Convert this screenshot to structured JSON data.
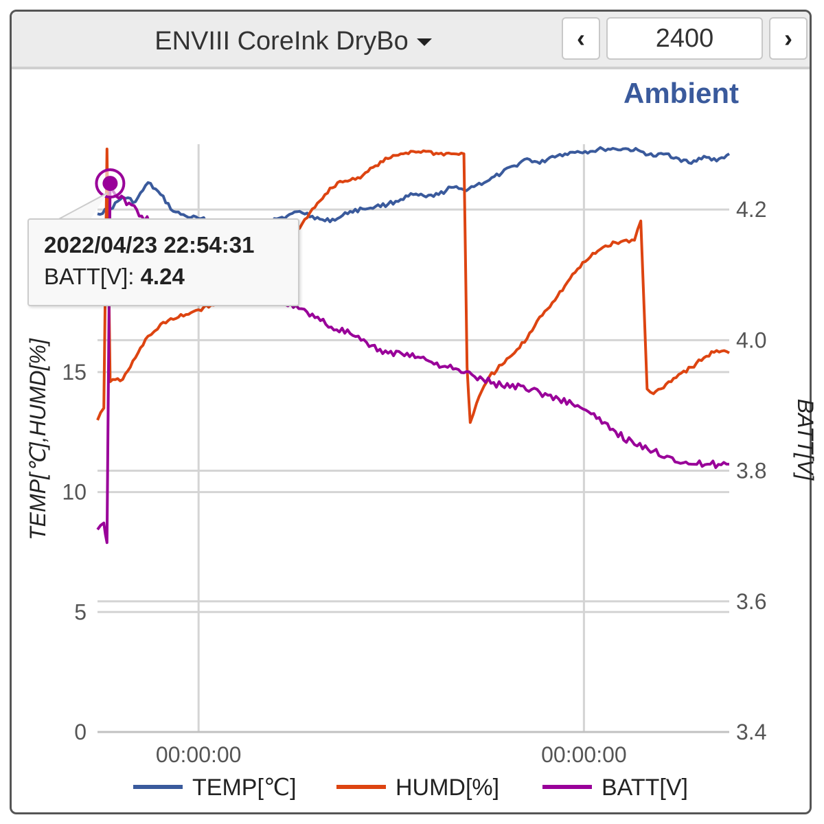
{
  "toolbar": {
    "device_name": "ENVIII CoreInk DryBo",
    "count": "2400",
    "prev_label": "‹",
    "next_label": "›"
  },
  "colors": {
    "temp": "#3a5a9c",
    "humd": "#dd4411",
    "batt": "#990099",
    "accent": "#3a5a9c"
  },
  "tooltip": {
    "timestamp": "2022/04/23 22:54:31",
    "series_label": "BATT[V]: ",
    "value": "4.24"
  },
  "chart_data": {
    "type": "line",
    "title": "Ambient",
    "ylabel_left": "TEMP[℃],HUMD[%]",
    "ylabel_right": "BATT[V]",
    "x_tick_labels": [
      "00:00:00",
      "00:00:00"
    ],
    "x_ticks": [
      0.16,
      0.77
    ],
    "xlim": [
      0,
      1
    ],
    "ylim_left": [
      0,
      24.5
    ],
    "ylim_right": [
      3.4,
      4.3
    ],
    "y_ticks_left": [
      0,
      5,
      10,
      15
    ],
    "y_ticks_right": [
      3.4,
      3.6,
      3.8,
      4.0,
      4.2
    ],
    "grid": true,
    "legend_position": "bottom",
    "series": [
      {
        "name": "TEMP[℃]",
        "axis": "left",
        "color": "#3a5a9c",
        "x": [
          0.0,
          0.02,
          0.04,
          0.06,
          0.08,
          0.1,
          0.12,
          0.14,
          0.16,
          0.18,
          0.2,
          0.22,
          0.24,
          0.26,
          0.28,
          0.3,
          0.32,
          0.34,
          0.36,
          0.38,
          0.4,
          0.42,
          0.44,
          0.46,
          0.48,
          0.5,
          0.52,
          0.54,
          0.56,
          0.58,
          0.6,
          0.62,
          0.64,
          0.66,
          0.68,
          0.7,
          0.72,
          0.74,
          0.76,
          0.78,
          0.8,
          0.82,
          0.84,
          0.86,
          0.88,
          0.9,
          0.92,
          0.94,
          0.96,
          0.98,
          1.0
        ],
        "values": [
          21.6,
          21.8,
          22.3,
          22.1,
          22.9,
          22.4,
          21.7,
          21.5,
          21.4,
          21.3,
          21.2,
          21.0,
          20.8,
          21.1,
          21.4,
          21.5,
          21.7,
          21.5,
          21.3,
          21.4,
          21.7,
          21.8,
          21.9,
          22.0,
          22.2,
          22.4,
          22.3,
          22.4,
          22.7,
          22.6,
          22.8,
          23.0,
          23.3,
          23.6,
          23.9,
          23.7,
          24.0,
          24.1,
          24.2,
          24.2,
          24.3,
          24.3,
          24.3,
          24.2,
          24.0,
          24.1,
          23.9,
          23.7,
          24.0,
          23.8,
          24.1
        ]
      },
      {
        "name": "HUMD[%]",
        "axis": "left",
        "color": "#dd4411",
        "x": [
          0.0,
          0.01,
          0.015,
          0.02,
          0.04,
          0.06,
          0.08,
          0.09,
          0.1,
          0.12,
          0.14,
          0.16,
          0.18,
          0.2,
          0.22,
          0.24,
          0.26,
          0.28,
          0.3,
          0.32,
          0.34,
          0.36,
          0.38,
          0.4,
          0.42,
          0.44,
          0.46,
          0.48,
          0.5,
          0.52,
          0.54,
          0.56,
          0.58,
          0.585,
          0.59,
          0.6,
          0.62,
          0.64,
          0.66,
          0.68,
          0.7,
          0.72,
          0.74,
          0.76,
          0.78,
          0.8,
          0.82,
          0.85,
          0.86,
          0.87,
          0.88,
          0.9,
          0.92,
          0.94,
          0.96,
          0.98,
          1.0
        ],
        "values": [
          13.0,
          13.5,
          24.3,
          14.6,
          14.7,
          15.6,
          16.5,
          16.7,
          17.0,
          17.2,
          17.4,
          17.6,
          17.8,
          18.0,
          18.2,
          18.5,
          18.9,
          19.5,
          20.3,
          21.0,
          21.8,
          22.4,
          22.9,
          23.0,
          23.2,
          23.6,
          23.9,
          24.1,
          24.2,
          24.2,
          24.1,
          24.1,
          24.1,
          15.2,
          12.9,
          13.7,
          14.8,
          15.3,
          15.8,
          16.4,
          17.3,
          17.9,
          18.6,
          19.3,
          19.8,
          20.2,
          20.4,
          20.5,
          21.3,
          14.3,
          14.1,
          14.5,
          14.9,
          15.2,
          15.6,
          15.9,
          15.8
        ]
      },
      {
        "name": "BATT[V]",
        "axis": "right",
        "color": "#990099",
        "x": [
          0.0,
          0.01,
          0.015,
          0.02,
          0.03,
          0.05,
          0.07,
          0.1,
          0.13,
          0.16,
          0.19,
          0.22,
          0.25,
          0.28,
          0.31,
          0.34,
          0.37,
          0.4,
          0.43,
          0.46,
          0.49,
          0.52,
          0.55,
          0.58,
          0.61,
          0.64,
          0.67,
          0.7,
          0.73,
          0.76,
          0.79,
          0.82,
          0.85,
          0.88,
          0.91,
          0.94,
          0.97,
          1.0
        ],
        "values": [
          3.71,
          3.72,
          3.69,
          4.24,
          4.22,
          4.21,
          4.19,
          4.17,
          4.15,
          4.13,
          4.12,
          4.1,
          4.08,
          4.07,
          4.05,
          4.04,
          4.02,
          4.01,
          3.99,
          3.98,
          3.98,
          3.97,
          3.96,
          3.95,
          3.94,
          3.93,
          3.93,
          3.92,
          3.91,
          3.9,
          3.88,
          3.86,
          3.84,
          3.83,
          3.82,
          3.81,
          3.81,
          3.81
        ]
      }
    ],
    "highlight": {
      "series": "BATT[V]",
      "x": 0.02,
      "value": 4.24
    }
  }
}
